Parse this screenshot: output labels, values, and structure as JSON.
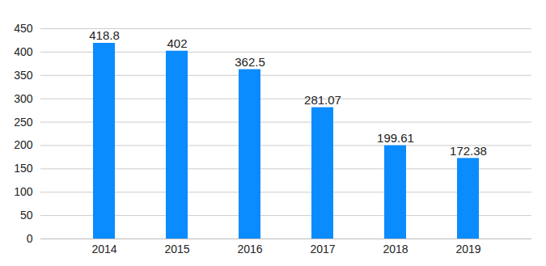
{
  "chart_data": {
    "type": "bar",
    "categories": [
      "2014",
      "2015",
      "2016",
      "2017",
      "2018",
      "2019"
    ],
    "values": [
      418.8,
      402,
      362.5,
      281.07,
      199.61,
      172.38
    ],
    "color": "#0a8cff",
    "ylim": [
      0,
      450
    ],
    "yticks": [
      0,
      50,
      100,
      150,
      200,
      250,
      300,
      350,
      400,
      450
    ],
    "grid": true,
    "data_labels": true
  }
}
